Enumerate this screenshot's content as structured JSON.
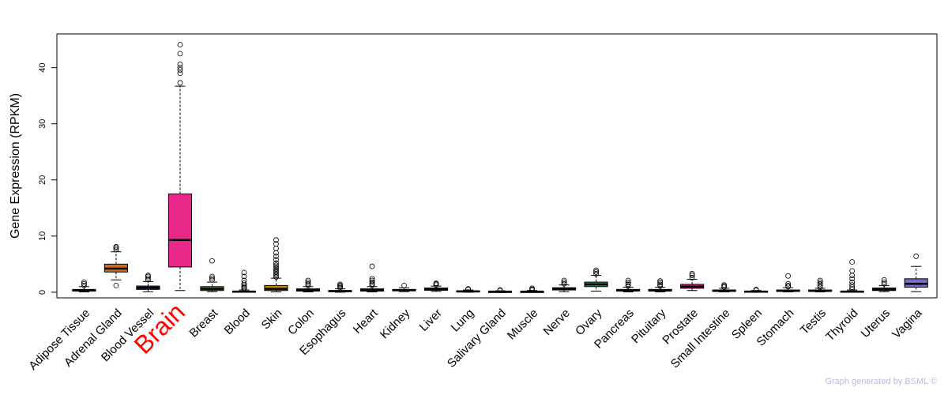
{
  "chart_data": {
    "type": "box",
    "ylabel": "Gene Expression (RPKM)",
    "xlabel": "",
    "ylim": [
      -1,
      46
    ],
    "yticks": [
      0,
      10,
      20,
      30,
      40
    ],
    "grid": false,
    "highlight": "Brain",
    "highlight_color": "#ff0000",
    "categories": [
      "Adipose Tissue",
      "Adrenal Gland",
      "Blood Vessel",
      "Brain",
      "Breast",
      "Blood",
      "Skin",
      "Colon",
      "Esophagus",
      "Heart",
      "Kidney",
      "Liver",
      "Lung",
      "Salivary Gland",
      "Muscle",
      "Nerve",
      "Ovary",
      "Pancreas",
      "Pituitary",
      "Prostate",
      "Small Intestine",
      "Spleen",
      "Stomach",
      "Testis",
      "Thyroid",
      "Uterus",
      "Vagina"
    ],
    "boxes": [
      {
        "color": "#1f4e8c",
        "whisker_low": 0.05,
        "q1": 0.2,
        "median": 0.35,
        "q3": 0.5,
        "whisker_high": 1.0,
        "outliers": [
          1.2,
          1.5,
          1.8
        ]
      },
      {
        "color": "#d2691e",
        "whisker_low": 2.2,
        "q1": 3.6,
        "median": 4.2,
        "q3": 5.0,
        "whisker_high": 7.2,
        "outliers": [
          1.2,
          7.6,
          7.9,
          8.1
        ]
      },
      {
        "color": "#2d3a8c",
        "whisker_low": 0.1,
        "q1": 0.5,
        "median": 0.8,
        "q3": 1.1,
        "whisker_high": 1.9,
        "outliers": [
          2.2,
          2.5,
          2.8,
          3.0
        ]
      },
      {
        "color": "#e8298a",
        "whisker_low": 0.3,
        "q1": 4.5,
        "median": 9.3,
        "q3": 17.5,
        "whisker_high": 36.7,
        "outliers": [
          37.3,
          39.0,
          39.6,
          40.0,
          40.6,
          42.5,
          44.1
        ]
      },
      {
        "color": "#5a8a2c",
        "whisker_low": 0.1,
        "q1": 0.3,
        "median": 0.6,
        "q3": 1.0,
        "whisker_high": 1.8,
        "outliers": [
          2.2,
          2.5,
          2.8,
          5.6
        ]
      },
      {
        "color": "#2b4a7a",
        "whisker_low": 0.0,
        "q1": 0.05,
        "median": 0.1,
        "q3": 0.2,
        "whisker_high": 0.4,
        "outliers": [
          0.6,
          0.8,
          1.0,
          1.3,
          1.6,
          2.1,
          2.8,
          3.5
        ]
      },
      {
        "color": "#b8860b",
        "whisker_low": 0.05,
        "q1": 0.3,
        "median": 0.6,
        "q3": 1.2,
        "whisker_high": 2.5,
        "outliers": [
          2.7,
          3.0,
          3.3,
          3.6,
          3.9,
          4.2,
          4.5,
          4.8,
          5.2,
          5.8,
          6.4,
          7.0,
          7.8,
          8.6,
          9.3
        ]
      },
      {
        "color": "#3a3a8a",
        "whisker_low": 0.05,
        "q1": 0.2,
        "median": 0.4,
        "q3": 0.6,
        "whisker_high": 1.0,
        "outliers": [
          1.2,
          1.5,
          1.8,
          2.1
        ]
      },
      {
        "color": "#7a3a2c",
        "whisker_low": 0.0,
        "q1": 0.1,
        "median": 0.2,
        "q3": 0.3,
        "whisker_high": 0.6,
        "outliers": [
          0.8,
          1.0,
          1.2,
          1.4
        ]
      },
      {
        "color": "#5a2c7a",
        "whisker_low": 0.05,
        "q1": 0.2,
        "median": 0.35,
        "q3": 0.6,
        "whisker_high": 1.0,
        "outliers": [
          1.2,
          1.5,
          1.8,
          2.1,
          2.4,
          4.6
        ]
      },
      {
        "color": "#3a3a3a",
        "whisker_low": 0.1,
        "q1": 0.25,
        "median": 0.35,
        "q3": 0.5,
        "whisker_high": 0.8,
        "outliers": [
          1.2
        ]
      },
      {
        "color": "#6a4a2c",
        "whisker_low": 0.15,
        "q1": 0.35,
        "median": 0.5,
        "q3": 0.75,
        "whisker_high": 1.1,
        "outliers": [
          1.3,
          1.5,
          1.6
        ]
      },
      {
        "color": "#2c3a6a",
        "whisker_low": 0.0,
        "q1": 0.1,
        "median": 0.15,
        "q3": 0.25,
        "whisker_high": 0.4,
        "outliers": [
          0.5,
          0.6
        ]
      },
      {
        "color": "#2c6a3a",
        "whisker_low": 0.0,
        "q1": 0.05,
        "median": 0.1,
        "q3": 0.15,
        "whisker_high": 0.25,
        "outliers": [
          0.3,
          0.4
        ]
      },
      {
        "color": "#3a2c6a",
        "whisker_low": 0.0,
        "q1": 0.05,
        "median": 0.1,
        "q3": 0.15,
        "whisker_high": 0.3,
        "outliers": [
          0.4,
          0.5,
          0.7
        ]
      },
      {
        "color": "#4a6a2c",
        "whisker_low": 0.1,
        "q1": 0.4,
        "median": 0.6,
        "q3": 0.8,
        "whisker_high": 1.3,
        "outliers": [
          1.5,
          1.8,
          2.1
        ]
      },
      {
        "color": "#2e8b57",
        "whisker_low": 0.2,
        "q1": 1.0,
        "median": 1.4,
        "q3": 1.8,
        "whisker_high": 3.0,
        "outliers": [
          3.3,
          3.6,
          3.9
        ]
      },
      {
        "color": "#4a4a8a",
        "whisker_low": 0.05,
        "q1": 0.2,
        "median": 0.35,
        "q3": 0.5,
        "whisker_high": 0.9,
        "outliers": [
          1.1,
          1.4,
          1.7,
          2.1
        ]
      },
      {
        "color": "#6a2c4a",
        "whisker_low": 0.05,
        "q1": 0.2,
        "median": 0.3,
        "q3": 0.5,
        "whisker_high": 0.9,
        "outliers": [
          1.1,
          1.4,
          1.7,
          2.0
        ]
      },
      {
        "color": "#e8298a",
        "whisker_low": 0.3,
        "q1": 0.7,
        "median": 1.0,
        "q3": 1.4,
        "whisker_high": 2.3,
        "outliers": [
          2.6,
          3.0,
          3.3
        ]
      },
      {
        "color": "#6a5a2c",
        "whisker_low": 0.05,
        "q1": 0.15,
        "median": 0.25,
        "q3": 0.4,
        "whisker_high": 0.7,
        "outliers": [
          0.9,
          1.1,
          1.3
        ]
      },
      {
        "color": "#2c4a6a",
        "whisker_low": 0.0,
        "q1": 0.05,
        "median": 0.1,
        "q3": 0.2,
        "whisker_high": 0.3,
        "outliers": [
          0.35,
          0.45
        ]
      },
      {
        "color": "#3a6a6a",
        "whisker_low": 0.05,
        "q1": 0.15,
        "median": 0.25,
        "q3": 0.4,
        "whisker_high": 0.8,
        "outliers": [
          1.0,
          1.2,
          1.5,
          2.9
        ]
      },
      {
        "color": "#2c2c5a",
        "whisker_low": 0.05,
        "q1": 0.15,
        "median": 0.25,
        "q3": 0.4,
        "whisker_high": 0.7,
        "outliers": [
          0.9,
          1.2,
          1.5,
          1.8,
          2.1
        ]
      },
      {
        "color": "#5a2c2c",
        "whisker_low": 0.0,
        "q1": 0.05,
        "median": 0.1,
        "q3": 0.2,
        "whisker_high": 0.4,
        "outliers": [
          0.6,
          0.9,
          1.3,
          1.8,
          2.4,
          3.0,
          3.8,
          5.4
        ]
      },
      {
        "color": "#8a6a2c",
        "whisker_low": 0.1,
        "q1": 0.3,
        "median": 0.5,
        "q3": 0.75,
        "whisker_high": 1.2,
        "outliers": [
          1.5,
          1.8,
          2.2
        ]
      },
      {
        "color": "#7b68c8",
        "whisker_low": 0.1,
        "q1": 0.9,
        "median": 1.5,
        "q3": 2.4,
        "whisker_high": 4.6,
        "outliers": [
          6.4
        ]
      }
    ]
  },
  "footer": "Graph generated by BSML ©"
}
